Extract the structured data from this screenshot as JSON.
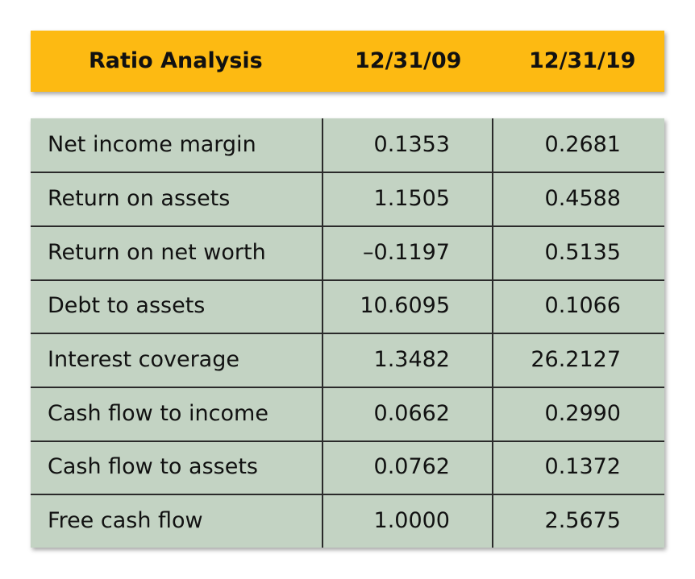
{
  "header": {
    "title": "Ratio Analysis",
    "col1": "12/31/09",
    "col2": "12/31/19"
  },
  "rows": [
    {
      "label": "Net income margin",
      "v1": "0.1353",
      "v2": "0.2681"
    },
    {
      "label": "Return on assets",
      "v1": "1.1505",
      "v2": "0.4588"
    },
    {
      "label": "Return on net worth",
      "v1": "–0.1197",
      "v2": "0.5135"
    },
    {
      "label": "Debt to assets",
      "v1": "10.6095",
      "v2": "0.1066"
    },
    {
      "label": "Interest coverage",
      "v1": "1.3482",
      "v2": "26.2127"
    },
    {
      "label": "Cash flow to income",
      "v1": "0.0662",
      "v2": "0.2990"
    },
    {
      "label": "Cash flow to assets",
      "v1": "0.0762",
      "v2": "0.1372"
    },
    {
      "label": "Free cash flow",
      "v1": "1.0000",
      "v2": "2.5675"
    }
  ],
  "colors": {
    "header_bg": "#fdba12",
    "table_bg": "#c3d3c3",
    "rule": "#2a2a2a"
  }
}
